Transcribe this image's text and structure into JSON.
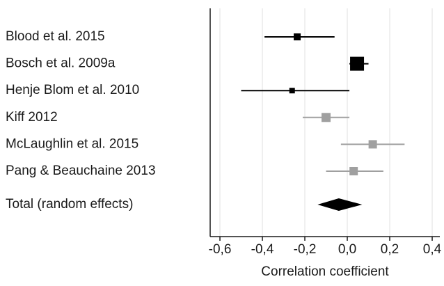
{
  "chart_data": {
    "type": "forest",
    "x_label": "Correlation coefficient",
    "studies": [
      {
        "name": "Blood et al. 2015",
        "estimate": -0.236,
        "lower": -0.39,
        "upper": -0.06,
        "weight": 10,
        "color": "#000000"
      },
      {
        "name": "Bosch et al. 2009a",
        "estimate": 0.046,
        "lower": 0.01,
        "upper": 0.1,
        "weight": 20,
        "color": "#000000"
      },
      {
        "name": "Henje Blom et al. 2010",
        "estimate": -0.26,
        "lower": -0.5,
        "upper": 0.01,
        "weight": 8,
        "color": "#000000"
      },
      {
        "name": "Kiff 2012",
        "estimate": -0.1,
        "lower": -0.21,
        "upper": 0.01,
        "weight": 13,
        "color": "#a0a0a0"
      },
      {
        "name": "McLaughlin et al. 2015",
        "estimate": 0.12,
        "lower": -0.03,
        "upper": 0.27,
        "weight": 12,
        "color": "#a0a0a0"
      },
      {
        "name": "Pang  & Beauchaine 2013",
        "estimate": 0.03,
        "lower": -0.1,
        "upper": 0.17,
        "weight": 12,
        "color": "#a0a0a0"
      }
    ],
    "total": {
      "name": "Total (random effects)",
      "estimate": -0.04,
      "lower": -0.14,
      "upper": 0.07,
      "color": "#000000"
    },
    "xlim": [
      -0.646,
      0.436
    ],
    "xticks": [
      {
        "value": -0.6,
        "label": "-0,6"
      },
      {
        "value": -0.4,
        "label": "-0,4"
      },
      {
        "value": -0.2,
        "label": "-0,2"
      },
      {
        "value": 0,
        "label": "0,0"
      },
      {
        "value": 0.2,
        "label": "0,2"
      },
      {
        "value": 0.4,
        "label": "0,4"
      }
    ],
    "grid": true
  }
}
